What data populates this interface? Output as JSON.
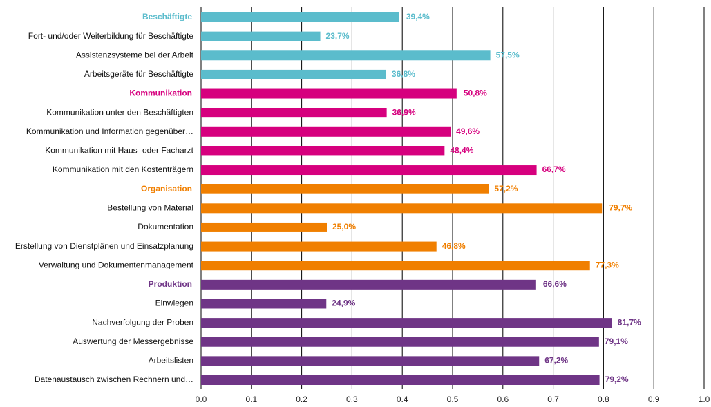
{
  "chart_data": {
    "type": "barh",
    "categories": [
      "Beschäftigte",
      "Fort- und/oder Weiterbildung für Beschäftigte",
      "Assistenzsysteme bei der Arbeit",
      "Arbeitsgeräte für Beschäftigte",
      "Kommunikation",
      "Kommunikation unter den Beschäftigten",
      "Kommunikation und Information gegenüber…",
      "Kommunikation mit Haus- oder Facharzt",
      "Kommunikation mit den Kostenträgern",
      "Organisation",
      "Bestellung von Material",
      "Dokumentation",
      "Erstellung von Dienstplänen und Einsatzplanung",
      "Verwaltung und Dokumentenmanagement",
      "Produktion",
      "Einwiegen",
      "Nachverfolgung der Proben",
      "Auswertung der Messergebnisse",
      "Arbeitslisten",
      "Datenaustausch zwischen Rechnern und…"
    ],
    "values": [
      0.394,
      0.237,
      0.575,
      0.368,
      0.508,
      0.369,
      0.496,
      0.484,
      0.667,
      0.572,
      0.797,
      0.25,
      0.468,
      0.773,
      0.666,
      0.249,
      0.817,
      0.791,
      0.672,
      0.792
    ],
    "value_labels": [
      "39,4%",
      "23,7%",
      "57,5%",
      "36,8%",
      "50,8%",
      "36,9%",
      "49,6%",
      "48,4%",
      "66,7%",
      "57,2%",
      "79,7%",
      "25,0%",
      "46,8%",
      "77,3%",
      "66,6%",
      "24,9%",
      "81,7%",
      "79,1%",
      "67,2%",
      "79,2%"
    ],
    "colors": [
      "#5bbccc",
      "#5bbccc",
      "#5bbccc",
      "#5bbccc",
      "#d6007e",
      "#d6007e",
      "#d6007e",
      "#d6007e",
      "#d6007e",
      "#f07f00",
      "#f07f00",
      "#f07f00",
      "#f07f00",
      "#f07f00",
      "#6f3586",
      "#6f3586",
      "#6f3586",
      "#6f3586",
      "#6f3586",
      "#6f3586"
    ],
    "header_rows": [
      0,
      4,
      9,
      14
    ],
    "large_value_labels": [
      0,
      4,
      10,
      14
    ],
    "xlim": [
      0,
      1
    ],
    "xticks": [
      {
        "value": 0,
        "label": "0.0"
      },
      0.1,
      0.2,
      0.3,
      0.4,
      0.5,
      0.6,
      0.7,
      0.8,
      0.9,
      {
        "value": 1,
        "label": "1.0"
      }
    ],
    "grid": true
  }
}
